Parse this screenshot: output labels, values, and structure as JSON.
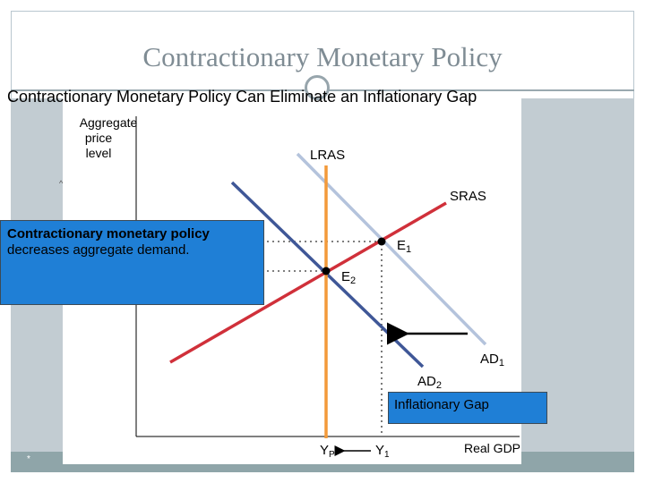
{
  "slide": {
    "title": "Contractionary Monetary Policy",
    "subtitle": "Contractionary Monetary Policy Can Eliminate an Inflationary Gap",
    "footer_mark": "*",
    "stray_mark": "^"
  },
  "graph": {
    "y_axis_label": [
      "Aggregate",
      "price",
      "level"
    ],
    "x_axis_label": "Real GDP",
    "curves": {
      "lras": "LRAS",
      "sras": "SRAS",
      "ad1": "AD",
      "ad1_sub": "1",
      "ad2": "AD",
      "ad2_sub": "2"
    },
    "points": {
      "e1": "E",
      "e1_sub": "1",
      "e2": "E",
      "e2_sub": "2"
    },
    "x_ticks": {
      "yp": "Y",
      "yp_sub": "P",
      "y1": "Y",
      "y1_sub": "1"
    },
    "colors": {
      "lras": "#f39a3a",
      "sras": "#d0303a",
      "ad1": "#b4c3dc",
      "ad2": "#3f5797"
    }
  },
  "callout": {
    "heading": "Contractionary monetary policy",
    "body": "decreases aggregate demand."
  },
  "gap_label": "Inflationary Gap"
}
